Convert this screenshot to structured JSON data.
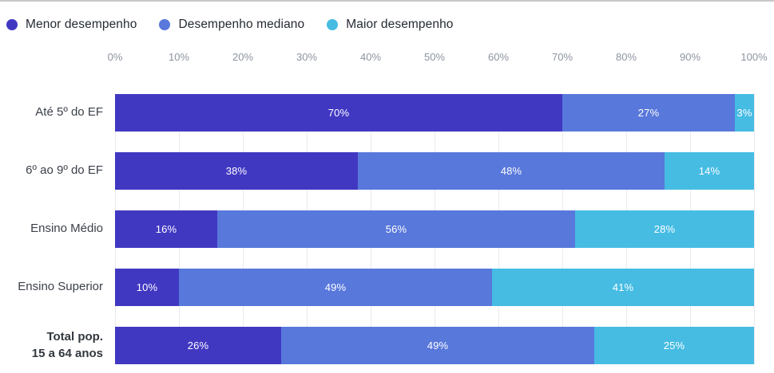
{
  "page": {
    "background": "#ffffff",
    "top_border_color": "#c8c8c8",
    "grid_color": "#e8eaed"
  },
  "legend": {
    "items": [
      {
        "label": "Menor desempenho",
        "color": "#4138C2"
      },
      {
        "label": "Desempenho mediano",
        "color": "#5878DB"
      },
      {
        "label": "Maior desempenho",
        "color": "#46BCE3"
      }
    ]
  },
  "chart_data": {
    "type": "bar",
    "orientation": "horizontal",
    "stacked": true,
    "title": "",
    "xlabel": "",
    "ylabel": "",
    "xlim": [
      0,
      100
    ],
    "x_ticks": [
      "0%",
      "10%",
      "20%",
      "30%",
      "40%",
      "50%",
      "60%",
      "70%",
      "80%",
      "90%",
      "100%"
    ],
    "grid": true,
    "legend_position": "top-left",
    "value_label_suffix": "%",
    "categories": [
      {
        "label": "Até 5º do EF",
        "bold": false
      },
      {
        "label": "6º ao 9º do EF",
        "bold": false
      },
      {
        "label": "Ensino Médio",
        "bold": false
      },
      {
        "label": "Ensino Superior",
        "bold": false
      },
      {
        "label": "Total pop.\n15 a 64 anos",
        "bold": true
      }
    ],
    "series": [
      {
        "name": "Menor desempenho",
        "color": "#4138C2",
        "values": [
          70,
          38,
          16,
          10,
          26
        ]
      },
      {
        "name": "Desempenho mediano",
        "color": "#5878DB",
        "values": [
          27,
          48,
          56,
          49,
          49
        ]
      },
      {
        "name": "Maior desempenho",
        "color": "#46BCE3",
        "values": [
          3,
          14,
          28,
          41,
          25
        ]
      }
    ]
  }
}
